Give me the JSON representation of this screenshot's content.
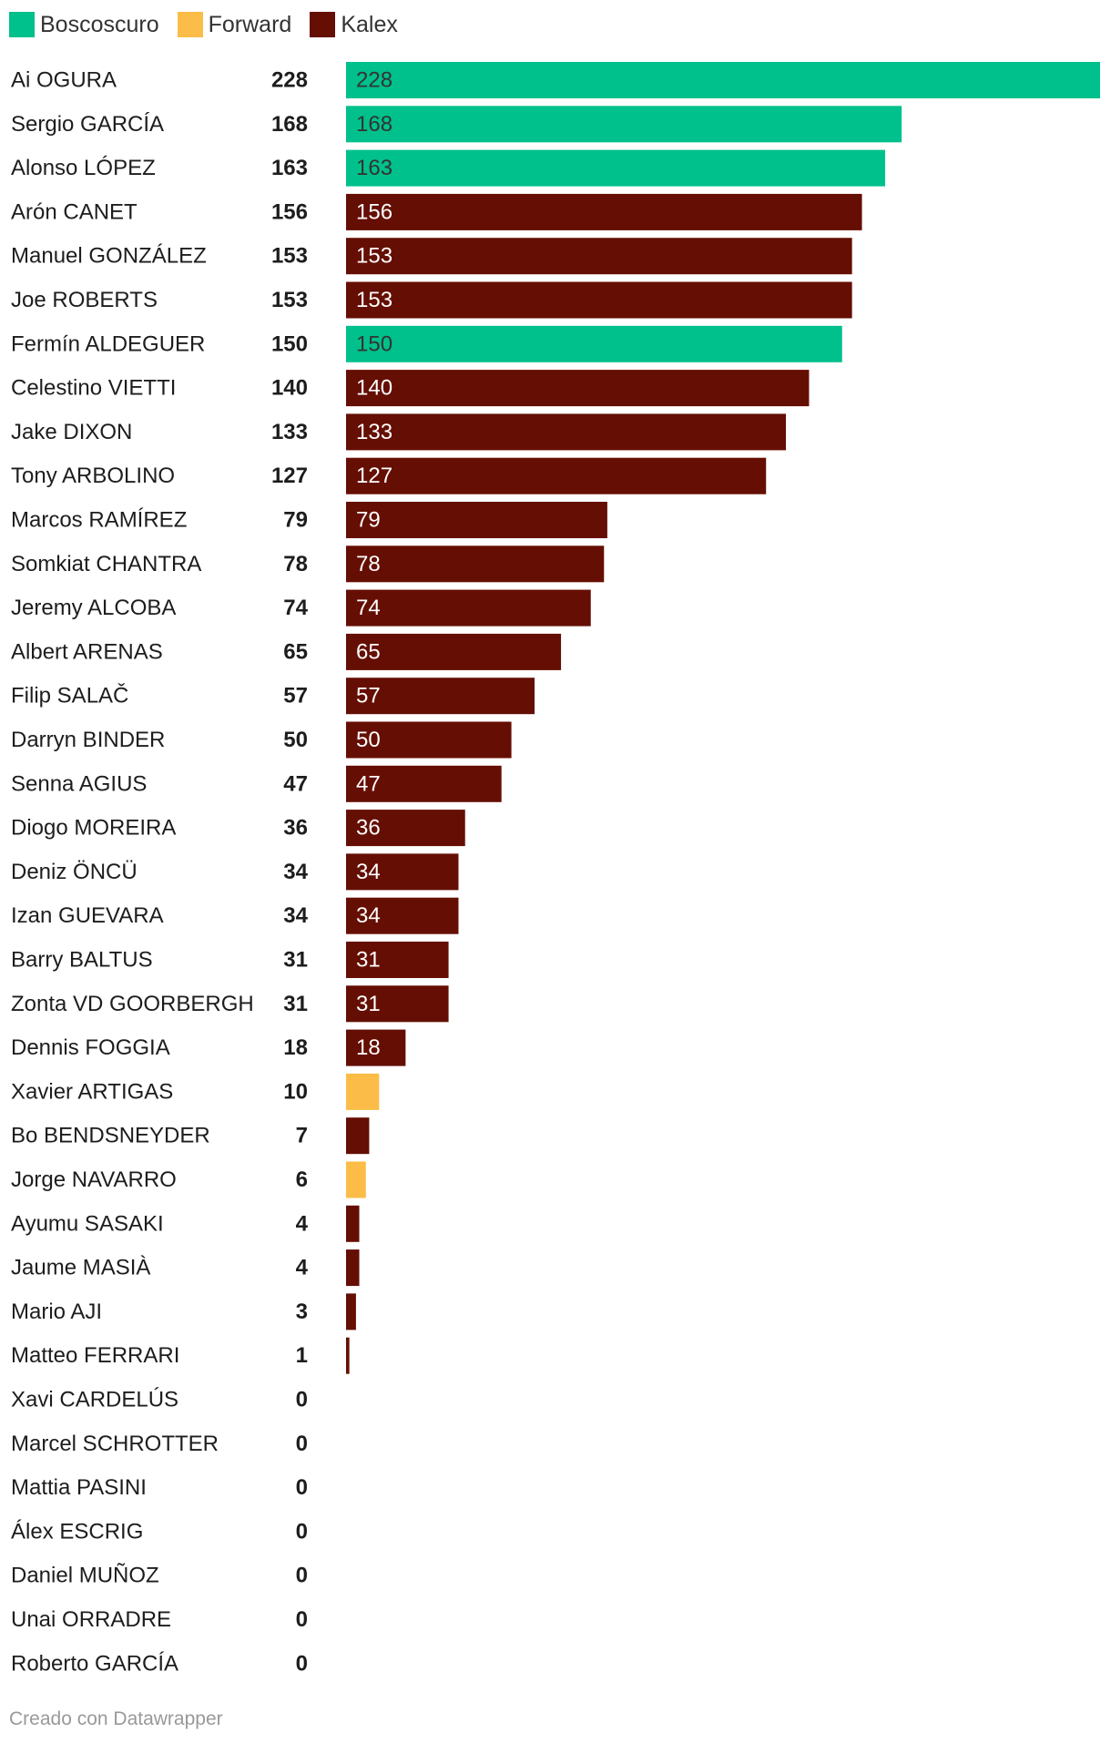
{
  "colors": {
    "Boscoscuro": "#00c08b",
    "Forward": "#fbbd47",
    "Kalex": "#650e03"
  },
  "legend": [
    {
      "label": "Boscoscuro",
      "color": "#00c08b"
    },
    {
      "label": "Forward",
      "color": "#fbbd47"
    },
    {
      "label": "Kalex",
      "color": "#650e03"
    }
  ],
  "chart_data": {
    "type": "bar",
    "orientation": "horizontal",
    "xlim": [
      0,
      228
    ],
    "grid": false,
    "legend_position": "top-left",
    "rows": [
      {
        "name": "Ai OGURA",
        "value": 228,
        "team": "Boscoscuro",
        "bar_label": "228"
      },
      {
        "name": "Sergio GARCÍA",
        "value": 168,
        "team": "Boscoscuro",
        "bar_label": "168"
      },
      {
        "name": "Alonso LÓPEZ",
        "value": 163,
        "team": "Boscoscuro",
        "bar_label": "163"
      },
      {
        "name": "Arón CANET",
        "value": 156,
        "team": "Kalex",
        "bar_label": "156"
      },
      {
        "name": "Manuel GONZÁLEZ",
        "value": 153,
        "team": "Kalex",
        "bar_label": "153"
      },
      {
        "name": "Joe ROBERTS",
        "value": 153,
        "team": "Kalex",
        "bar_label": "153"
      },
      {
        "name": "Fermín ALDEGUER",
        "value": 150,
        "team": "Boscoscuro",
        "bar_label": "150"
      },
      {
        "name": "Celestino VIETTI",
        "value": 140,
        "team": "Kalex",
        "bar_label": "140"
      },
      {
        "name": "Jake DIXON",
        "value": 133,
        "team": "Kalex",
        "bar_label": "133"
      },
      {
        "name": "Tony ARBOLINO",
        "value": 127,
        "team": "Kalex",
        "bar_label": "127"
      },
      {
        "name": "Marcos RAMÍREZ",
        "value": 79,
        "team": "Kalex",
        "bar_label": "79"
      },
      {
        "name": "Somkiat CHANTRA",
        "value": 78,
        "team": "Kalex",
        "bar_label": "78"
      },
      {
        "name": "Jeremy ALCOBA",
        "value": 74,
        "team": "Kalex",
        "bar_label": "74"
      },
      {
        "name": "Albert ARENAS",
        "value": 65,
        "team": "Kalex",
        "bar_label": "65"
      },
      {
        "name": "Filip SALAČ",
        "value": 57,
        "team": "Kalex",
        "bar_label": "57"
      },
      {
        "name": "Darryn BINDER",
        "value": 50,
        "team": "Kalex",
        "bar_label": "50"
      },
      {
        "name": "Senna AGIUS",
        "value": 47,
        "team": "Kalex",
        "bar_label": "47"
      },
      {
        "name": "Diogo MOREIRA",
        "value": 36,
        "team": "Kalex",
        "bar_label": "36"
      },
      {
        "name": "Deniz ÖNCÜ",
        "value": 34,
        "team": "Kalex",
        "bar_label": "34"
      },
      {
        "name": "Izan GUEVARA",
        "value": 34,
        "team": "Kalex",
        "bar_label": "34"
      },
      {
        "name": "Barry BALTUS",
        "value": 31,
        "team": "Kalex",
        "bar_label": "31"
      },
      {
        "name": "Zonta VD GOORBERGH",
        "value": 31,
        "team": "Kalex",
        "bar_label": "31"
      },
      {
        "name": "Dennis FOGGIA",
        "value": 18,
        "team": "Kalex",
        "bar_label": "18"
      },
      {
        "name": "Xavier ARTIGAS",
        "value": 10,
        "team": "Forward",
        "bar_label": ""
      },
      {
        "name": "Bo BENDSNEYDER",
        "value": 7,
        "team": "Kalex",
        "bar_label": ""
      },
      {
        "name": "Jorge NAVARRO",
        "value": 6,
        "team": "Forward",
        "bar_label": ""
      },
      {
        "name": "Ayumu SASAKI",
        "value": 4,
        "team": "Kalex",
        "bar_label": ""
      },
      {
        "name": "Jaume MASIÀ",
        "value": 4,
        "team": "Kalex",
        "bar_label": ""
      },
      {
        "name": "Mario AJI",
        "value": 3,
        "team": "Kalex",
        "bar_label": ""
      },
      {
        "name": "Matteo FERRARI",
        "value": 1,
        "team": "Kalex",
        "bar_label": ""
      },
      {
        "name": "Xavi CARDELÚS",
        "value": 0,
        "team": "Kalex",
        "bar_label": ""
      },
      {
        "name": "Marcel SCHROTTER",
        "value": 0,
        "team": "Kalex",
        "bar_label": ""
      },
      {
        "name": "Mattia PASINI",
        "value": 0,
        "team": "Kalex",
        "bar_label": ""
      },
      {
        "name": "Álex ESCRIG",
        "value": 0,
        "team": "Kalex",
        "bar_label": ""
      },
      {
        "name": "Daniel MUÑOZ",
        "value": 0,
        "team": "Kalex",
        "bar_label": ""
      },
      {
        "name": "Unai ORRADRE",
        "value": 0,
        "team": "Kalex",
        "bar_label": ""
      },
      {
        "name": "Roberto GARCÍA",
        "value": 0,
        "team": "Kalex",
        "bar_label": ""
      }
    ]
  },
  "footer": {
    "credit": "Creado con Datawrapper"
  }
}
